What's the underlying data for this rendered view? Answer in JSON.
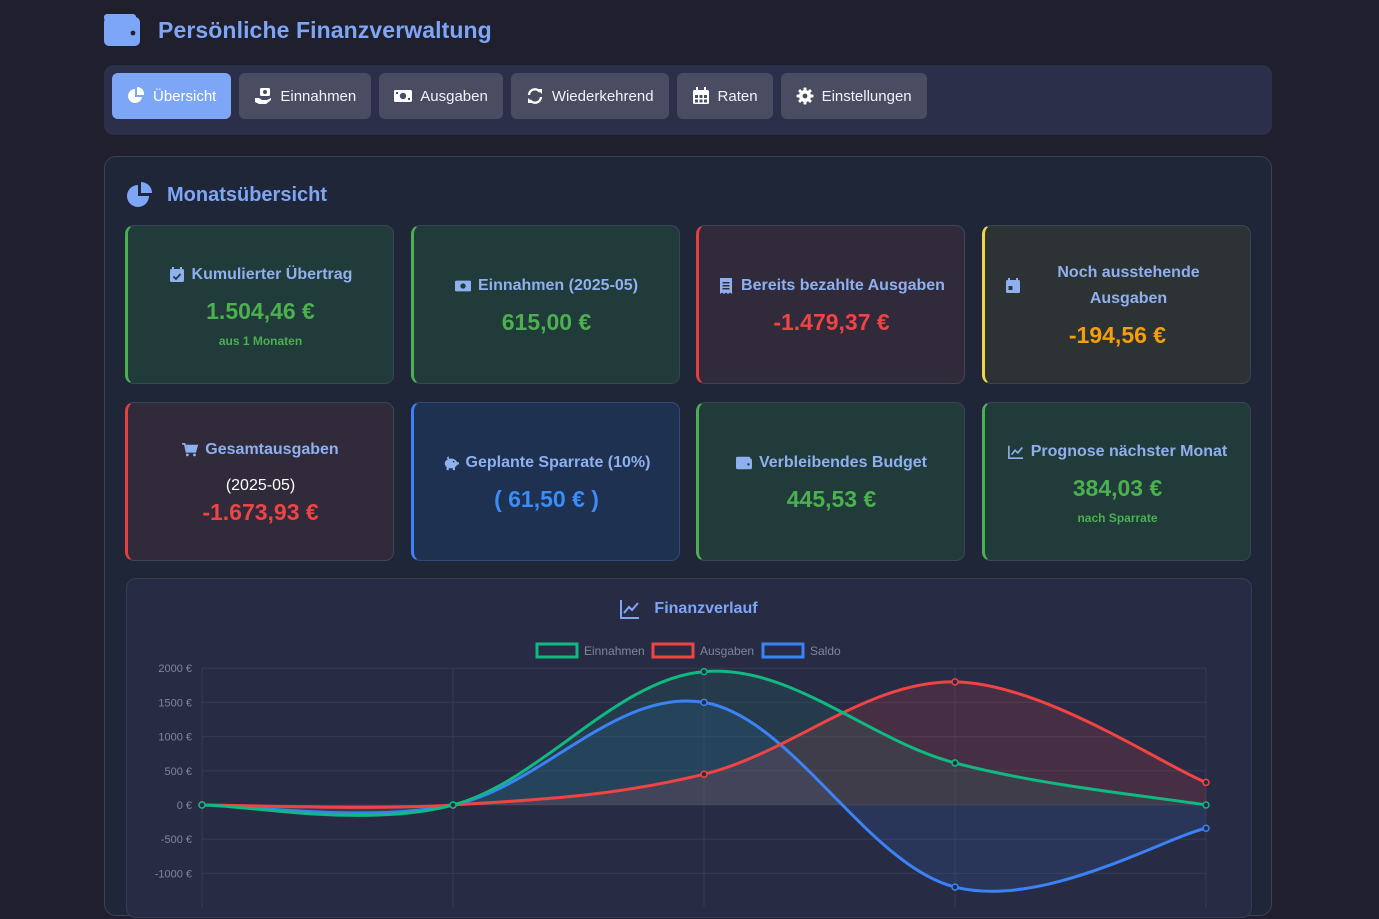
{
  "app": {
    "title": "Persönliche Finanzverwaltung"
  },
  "nav": {
    "tabs": [
      {
        "label": "Übersicht",
        "icon": "chart-pie-icon",
        "active": true
      },
      {
        "label": "Einnahmen",
        "icon": "hand-holding-dollar-icon",
        "active": false
      },
      {
        "label": "Ausgaben",
        "icon": "money-bill-icon",
        "active": false
      },
      {
        "label": "Wiederkehrend",
        "icon": "sync-icon",
        "active": false
      },
      {
        "label": "Raten",
        "icon": "calendar-grid-icon",
        "active": false
      },
      {
        "label": "Einstellungen",
        "icon": "gear-icon",
        "active": false
      }
    ]
  },
  "overview": {
    "title": "Monatsübersicht",
    "cards": {
      "carryover": {
        "title": "Kumulierter Übertrag",
        "value": "1.504,46 €",
        "sub": "aus 1 Monaten"
      },
      "income": {
        "title": "Einnahmen (2025-05)",
        "value": "615,00 €"
      },
      "paid": {
        "title": "Bereits bezahlte Ausgaben",
        "value": "-1.479,37 €"
      },
      "pending": {
        "title": "Noch ausstehende Ausgaben",
        "value": "-194,56 €"
      },
      "total": {
        "title": "Gesamtausgaben",
        "date": "(2025-05)",
        "value": "-1.673,93 €"
      },
      "savings": {
        "title": "Geplante Sparrate (10%)",
        "value": "( 61,50 € )"
      },
      "budget": {
        "title": "Verbleibendes Budget",
        "value": "445,53 €"
      },
      "forecast": {
        "title": "Prognose nächster Monat",
        "value": "384,03 €",
        "sub": "nach Sparrate"
      }
    }
  },
  "colors": {
    "accent": "#7ea6f6",
    "green": "#4caf50",
    "red": "#ef4444",
    "orange": "#f59e0b",
    "blue": "#3b82f6"
  },
  "chart_data": {
    "type": "line",
    "title": "Finanzverlauf",
    "categories": [
      "",
      "",
      "",
      "",
      ""
    ],
    "series": [
      {
        "name": "Einnahmen",
        "values": [
          0,
          0,
          1950,
          615,
          0
        ],
        "color": "#10b981"
      },
      {
        "name": "Ausgaben",
        "values": [
          0,
          0,
          450,
          1800,
          330
        ],
        "color": "#ef4444"
      },
      {
        "name": "Saldo",
        "values": [
          0,
          0,
          1500,
          -1200,
          -340
        ],
        "color": "#3b82f6"
      }
    ],
    "yticks": [
      2000,
      1500,
      1000,
      500,
      0,
      -500,
      -1000
    ],
    "ytick_labels": [
      "2000 €",
      "1500 €",
      "1000 €",
      "500 €",
      "0 €",
      "-500 €",
      "-1000 €"
    ],
    "ylim": [
      -1500,
      2000
    ],
    "legend": "top-center",
    "grid": true
  }
}
